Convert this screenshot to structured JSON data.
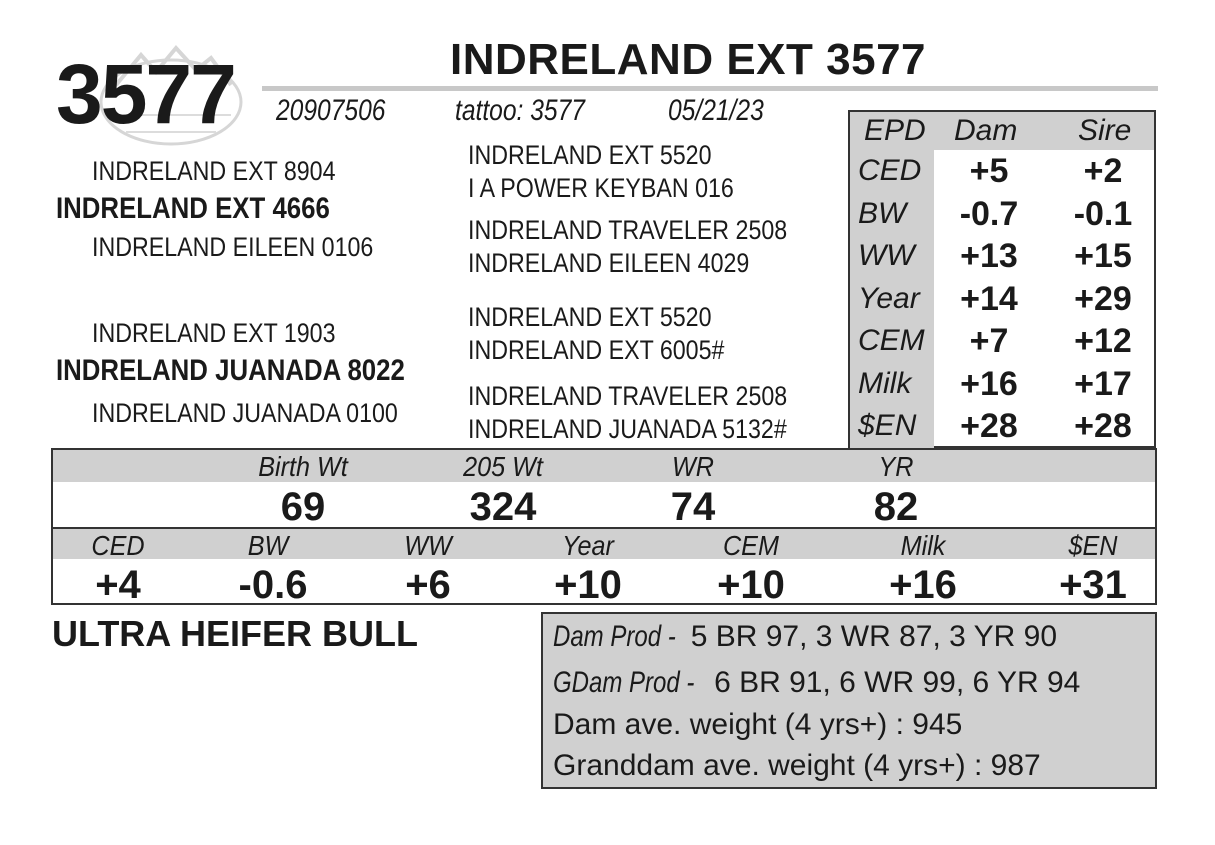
{
  "lot_number": "3577",
  "animal_name": "INDRELAND EXT 3577",
  "registration": "20907506",
  "tattoo": "tattoo: 3577",
  "birth_date": "05/21/23",
  "pedigree": {
    "sire_sire": "INDRELAND EXT 8904",
    "sire": "INDRELAND EXT 4666",
    "sire_dam": "INDRELAND EILEEN 0106",
    "dam_sire": "INDRELAND EXT 1903",
    "dam": "INDRELAND JUANADA 8022",
    "dam_dam": "INDRELAND JUANADA 0100",
    "col3": [
      "INDRELAND EXT 5520",
      "I A POWER KEYBAN 016",
      "INDRELAND TRAVELER 2508",
      "INDRELAND EILEEN 4029",
      "INDRELAND EXT 5520",
      "INDRELAND EXT 6005#",
      "INDRELAND TRAVELER 2508",
      "INDRELAND JUANADA 5132#"
    ]
  },
  "epd_table": {
    "headers": [
      "EPD",
      "Dam",
      "Sire"
    ],
    "rows": [
      {
        "label": "CED",
        "dam": "+5",
        "sire": "+2"
      },
      {
        "label": "BW",
        "dam": "-0.7",
        "sire": "-0.1"
      },
      {
        "label": "WW",
        "dam": "+13",
        "sire": "+15"
      },
      {
        "label": "Year",
        "dam": "+14",
        "sire": "+29"
      },
      {
        "label": "CEM",
        "dam": "+7",
        "sire": "+12"
      },
      {
        "label": "Milk",
        "dam": "+16",
        "sire": "+17"
      },
      {
        "label": "$EN",
        "dam": "+28",
        "sire": "+28"
      }
    ]
  },
  "weights": {
    "headers": [
      "Birth Wt",
      "205 Wt",
      "WR",
      "YR"
    ],
    "values": [
      "69",
      "324",
      "74",
      "82"
    ]
  },
  "own_epds": {
    "headers": [
      "CED",
      "BW",
      "WW",
      "Year",
      "CEM",
      "Milk",
      "$EN"
    ],
    "values": [
      "+4",
      "-0.6",
      "+6",
      "+10",
      "+10",
      "+16",
      "+31"
    ]
  },
  "tagline": "ULTRA HEIFER BULL",
  "production": {
    "dam_prod_label": "Dam Prod -",
    "dam_prod_value": "5 BR 97, 3 WR 87, 3 YR 90",
    "gdam_prod_label": "GDam Prod -",
    "gdam_prod_value": "6 BR 91, 6 WR 99, 6 YR 94",
    "dam_weight": "Dam ave. weight (4 yrs+) : 945",
    "granddam_weight": "Granddam ave. weight (4 yrs+) : 987"
  },
  "colors": {
    "band_gray": "#d0d0d0",
    "text": "#1a1a1a",
    "logo_gray": "#c8c8c8"
  },
  "logo_icon": "ranch-mountain-logo"
}
